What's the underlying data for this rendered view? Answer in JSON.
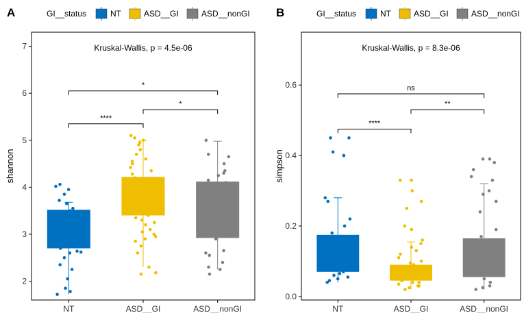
{
  "chart_data": [
    {
      "panel_label": "A",
      "type": "box",
      "title": "Kruskal-Wallis, p = 4.5e-06",
      "xlabel": "",
      "ylabel": "shannon",
      "ylim": [
        1.6,
        7.3
      ],
      "yticks": [
        2,
        3,
        4,
        5,
        6,
        7
      ],
      "categories": [
        "NT",
        "ASD__GI",
        "ASD__nonGI"
      ],
      "legend": {
        "title": "GI__status",
        "entries": [
          "NT",
          "ASD__GI",
          "ASD__nonGI"
        ],
        "position": "top"
      },
      "boxes": [
        {
          "name": "NT",
          "color": "#0070C0",
          "q1": 2.7,
          "median": 3.08,
          "q3": 3.52,
          "whisker_low": 1.72,
          "whisker_high": 3.68,
          "points": [
            1.72,
            1.78,
            1.85,
            2.05,
            2.25,
            2.35,
            2.5,
            2.6,
            2.62,
            2.64,
            2.7,
            2.75,
            2.85,
            2.95,
            3.05,
            3.1,
            3.2,
            3.3,
            3.4,
            3.5,
            3.55,
            3.65,
            3.72,
            3.85,
            3.95,
            4.02,
            4.06
          ]
        },
        {
          "name": "ASD__GI",
          "color": "#F0BE00",
          "q1": 3.4,
          "median": 3.78,
          "q3": 4.22,
          "whisker_low": 2.3,
          "whisker_high": 5.0,
          "points": [
            2.15,
            2.18,
            2.3,
            2.6,
            2.75,
            2.85,
            2.9,
            2.95,
            3.0,
            3.05,
            3.1,
            3.2,
            3.25,
            3.3,
            3.35,
            3.4,
            3.45,
            3.5,
            3.55,
            3.6,
            3.65,
            3.7,
            3.75,
            3.8,
            3.85,
            3.9,
            3.95,
            4.0,
            4.05,
            4.1,
            4.15,
            4.2,
            4.28,
            4.35,
            4.42,
            4.5,
            4.55,
            4.6,
            4.7,
            4.8,
            4.9,
            4.95,
            5.0,
            5.05,
            5.1
          ]
        },
        {
          "name": "ASD__nonGI",
          "color": "#808080",
          "q1": 2.92,
          "median": 3.55,
          "q3": 4.12,
          "whisker_low": 2.25,
          "whisker_high": 4.98,
          "points": [
            2.15,
            2.25,
            2.3,
            2.4,
            2.55,
            2.6,
            2.65,
            2.9,
            3.0,
            3.2,
            3.4,
            3.6,
            3.75,
            3.85,
            3.95,
            4.05,
            4.1,
            4.15,
            4.25,
            4.3,
            4.35,
            4.5,
            4.65,
            4.7,
            5.0
          ]
        }
      ],
      "comparisons": [
        {
          "from": "NT",
          "to": "ASD__GI",
          "label": "****",
          "y": 5.35
        },
        {
          "from": "ASD__GI",
          "to": "ASD__nonGI",
          "label": "*",
          "y": 5.65
        },
        {
          "from": "NT",
          "to": "ASD__nonGI",
          "label": "*",
          "y": 6.05
        }
      ]
    },
    {
      "panel_label": "B",
      "type": "box",
      "title": "Kruskal-Wallis, p = 8.3e-06",
      "xlabel": "",
      "ylabel": "simpson",
      "ylim": [
        -0.01,
        0.75
      ],
      "yticks": [
        0.0,
        0.2,
        0.4,
        0.6
      ],
      "ytick_labels": [
        "0.0",
        "0.2",
        "0.4",
        "0.6"
      ],
      "categories": [
        "NT",
        "ASD__GI",
        "ASD__nonGI"
      ],
      "legend": {
        "title": "GI__status",
        "entries": [
          "NT",
          "ASD__GI",
          "ASD__nonGI"
        ],
        "position": "top"
      },
      "boxes": [
        {
          "name": "NT",
          "color": "#0070C0",
          "q1": 0.07,
          "median": 0.11,
          "q3": 0.175,
          "whisker_low": 0.04,
          "whisker_high": 0.28,
          "points": [
            0.04,
            0.045,
            0.05,
            0.055,
            0.06,
            0.065,
            0.07,
            0.075,
            0.08,
            0.09,
            0.1,
            0.11,
            0.12,
            0.13,
            0.14,
            0.15,
            0.16,
            0.17,
            0.18,
            0.2,
            0.22,
            0.27,
            0.28,
            0.4,
            0.41,
            0.45,
            0.45
          ]
        },
        {
          "name": "ASD__GI",
          "color": "#F0BE00",
          "q1": 0.045,
          "median": 0.06,
          "q3": 0.09,
          "whisker_low": 0.02,
          "whisker_high": 0.155,
          "points": [
            0.02,
            0.025,
            0.03,
            0.03,
            0.035,
            0.04,
            0.04,
            0.045,
            0.05,
            0.05,
            0.055,
            0.06,
            0.06,
            0.065,
            0.07,
            0.07,
            0.075,
            0.08,
            0.085,
            0.09,
            0.095,
            0.1,
            0.11,
            0.12,
            0.13,
            0.14,
            0.15,
            0.16,
            0.19,
            0.2,
            0.25,
            0.27,
            0.3,
            0.33,
            0.33
          ]
        },
        {
          "name": "ASD__nonGI",
          "color": "#808080",
          "q1": 0.055,
          "median": 0.09,
          "q3": 0.165,
          "whisker_low": 0.02,
          "whisker_high": 0.32,
          "points": [
            0.02,
            0.025,
            0.03,
            0.04,
            0.05,
            0.06,
            0.07,
            0.08,
            0.09,
            0.1,
            0.12,
            0.14,
            0.16,
            0.17,
            0.19,
            0.24,
            0.27,
            0.29,
            0.3,
            0.33,
            0.34,
            0.36,
            0.38,
            0.39,
            0.39
          ]
        }
      ],
      "comparisons": [
        {
          "from": "NT",
          "to": "ASD__GI",
          "label": "****",
          "y": 0.475
        },
        {
          "from": "ASD__GI",
          "to": "ASD__nonGI",
          "label": "**",
          "y": 0.53
        },
        {
          "from": "NT",
          "to": "ASD__nonGI",
          "label": "ns",
          "y": 0.575
        }
      ]
    }
  ]
}
